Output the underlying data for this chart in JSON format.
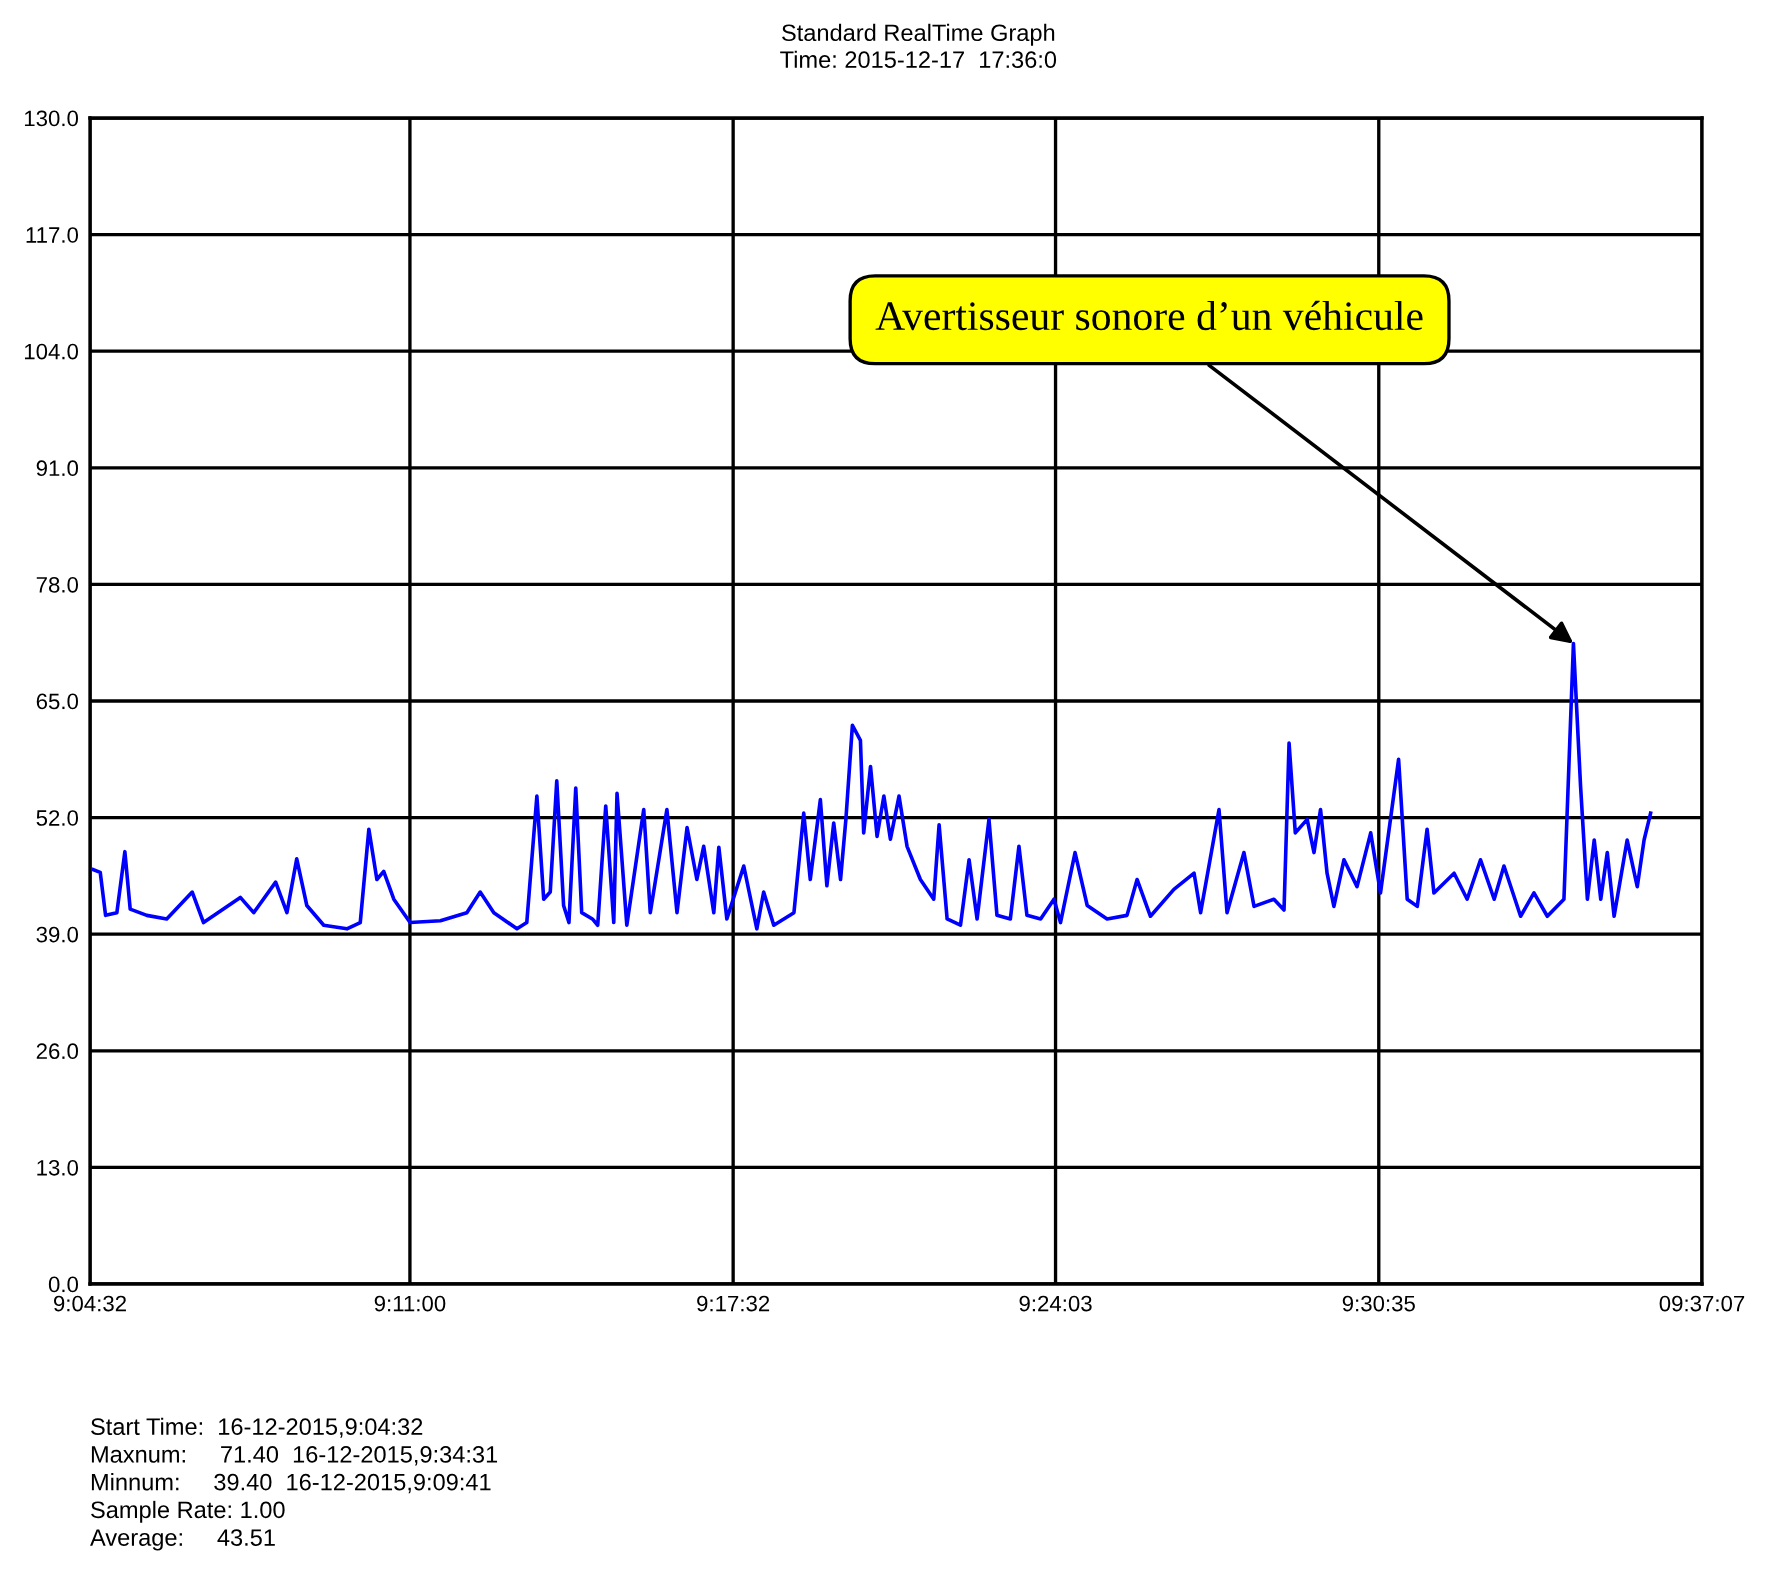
{
  "chart_data": {
    "type": "line",
    "title": "Standard RealTime Graph",
    "subtitle": "Time: 2015-12-17  17:36:0",
    "x": [
      9.0767,
      9.079,
      9.0808,
      9.0846,
      9.0873,
      9.0891,
      9.0947,
      9.1014,
      9.11,
      9.1138,
      9.1262,
      9.1307,
      9.1381,
      9.1419,
      9.1452,
      9.1486,
      9.1543,
      9.1621,
      9.1666,
      9.1695,
      9.1722,
      9.1745,
      9.1779,
      9.1834,
      9.1936,
      9.2025,
      9.207,
      9.2116,
      9.2194,
      9.2227,
      9.2261,
      9.2284,
      9.2306,
      9.2328,
      9.2351,
      9.2369,
      9.2392,
      9.2412,
      9.2448,
      9.2466,
      9.2493,
      9.252,
      9.2531,
      9.2564,
      9.2621,
      9.2643,
      9.2699,
      9.2733,
      9.2767,
      9.28,
      9.2823,
      9.2857,
      9.2874,
      9.2901,
      9.2958,
      9.3002,
      9.3025,
      9.3059,
      9.3127,
      9.316,
      9.3182,
      9.3216,
      9.3238,
      9.3261,
      9.3284,
      9.3302,
      9.3324,
      9.3351,
      9.3362,
      9.3385,
      9.3407,
      9.343,
      9.3452,
      9.3481,
      9.3508,
      9.3553,
      9.3598,
      9.3616,
      9.3643,
      9.3688,
      9.3717,
      9.3744,
      9.3784,
      9.3811,
      9.3856,
      9.3885,
      9.3912,
      9.3958,
      9.4003,
      9.4025,
      9.4074,
      9.4115,
      9.4182,
      9.4249,
      9.4283,
      9.4328,
      9.4407,
      9.4475,
      9.4497,
      9.4559,
      9.4586,
      9.4643,
      9.4677,
      9.4744,
      9.4778,
      9.4795,
      9.4816,
      9.4856,
      9.4879,
      9.4901,
      9.4923,
      9.4946,
      9.498,
      9.5024,
      9.507,
      9.5103,
      9.5164,
      9.5193,
      9.5227,
      9.526,
      9.5283,
      9.5351,
      9.5395,
      9.544,
      9.5486,
      9.5519,
      9.5575,
      9.562,
      9.5665,
      9.5721,
      9.5753,
      9.5777,
      9.58,
      9.5823,
      9.5845,
      9.5867,
      9.589,
      9.5934,
      9.5968,
      9.5991,
      9.6013
    ],
    "series": [
      {
        "color": "#0000ff",
        "values": [
          46.2,
          45.9,
          41.1,
          41.4,
          48.2,
          41.8,
          41.1,
          40.7,
          43.7,
          40.3,
          43.1,
          41.4,
          44.8,
          41.4,
          47.4,
          42.2,
          40.0,
          39.6,
          40.3,
          50.7,
          45.1,
          46.0,
          42.9,
          40.3,
          40.5,
          41.4,
          43.7,
          41.4,
          39.6,
          40.3,
          54.4,
          42.9,
          43.7,
          56.1,
          42.2,
          40.3,
          55.3,
          41.4,
          40.7,
          40.0,
          53.3,
          40.3,
          54.7,
          40.0,
          52.9,
          41.4,
          52.9,
          41.4,
          50.9,
          45.1,
          48.8,
          41.4,
          48.7,
          40.7,
          46.6,
          39.6,
          43.7,
          40.0,
          41.4,
          52.5,
          45.1,
          54.0,
          44.4,
          51.4,
          45.1,
          51.8,
          62.3,
          60.6,
          50.3,
          57.7,
          49.9,
          54.4,
          49.6,
          54.4,
          48.8,
          45.1,
          42.9,
          51.2,
          40.7,
          40.0,
          47.3,
          40.7,
          51.8,
          41.1,
          40.7,
          48.8,
          41.1,
          40.7,
          42.9,
          40.3,
          48.1,
          42.2,
          40.7,
          41.1,
          45.1,
          41.0,
          44.0,
          45.8,
          41.4,
          52.9,
          41.4,
          48.1,
          42.1,
          42.9,
          41.7,
          60.3,
          50.3,
          51.8,
          48.1,
          52.9,
          45.8,
          42.1,
          47.3,
          44.3,
          50.3,
          43.6,
          58.5,
          42.9,
          42.1,
          50.7,
          43.6,
          45.8,
          42.9,
          47.3,
          42.9,
          46.6,
          41.0,
          43.6,
          41.0,
          42.9,
          71.4,
          55.5,
          42.9,
          49.5,
          42.9,
          48.1,
          41.0,
          49.5,
          44.3,
          49.5,
          52.5
        ]
      }
    ],
    "xlim": [
      9.075556,
      9.618611
    ],
    "xticks": [
      {
        "value": 9.075556,
        "label": "9:04:32"
      },
      {
        "value": 9.183333,
        "label": "9:11:00"
      },
      {
        "value": 9.292222,
        "label": "9:17:32"
      },
      {
        "value": 9.400833,
        "label": "9:24:03"
      },
      {
        "value": 9.509722,
        "label": "9:30:35"
      },
      {
        "value": 9.618611,
        "label": "09:37:07"
      }
    ],
    "ylim": [
      0,
      130
    ],
    "yticks": [
      {
        "value": 0,
        "label": "0.0"
      },
      {
        "value": 13,
        "label": "13.0"
      },
      {
        "value": 26,
        "label": "26.0"
      },
      {
        "value": 39,
        "label": "39.0"
      },
      {
        "value": 52,
        "label": "52.0"
      },
      {
        "value": 65,
        "label": "65.0"
      },
      {
        "value": 78,
        "label": "78.0"
      },
      {
        "value": 91,
        "label": "91.0"
      },
      {
        "value": 104,
        "label": "104.0"
      },
      {
        "value": 117,
        "label": "117.0"
      },
      {
        "value": 130,
        "label": "130.0"
      }
    ],
    "grid": true,
    "line_style": "solid",
    "annotations": [
      {
        "text": "Avertisseur sonore d’un véhicule",
        "x": 9.5753,
        "y": 71.4
      },
      "Start Time:  16-12-2015,9:04:32",
      "Maxnum:     71.40  16-12-2015,9:34:31",
      "Minnum:     39.40  16-12-2015,9:09:41",
      "Sample Rate: 1.00",
      "Average:     43.51"
    ]
  }
}
